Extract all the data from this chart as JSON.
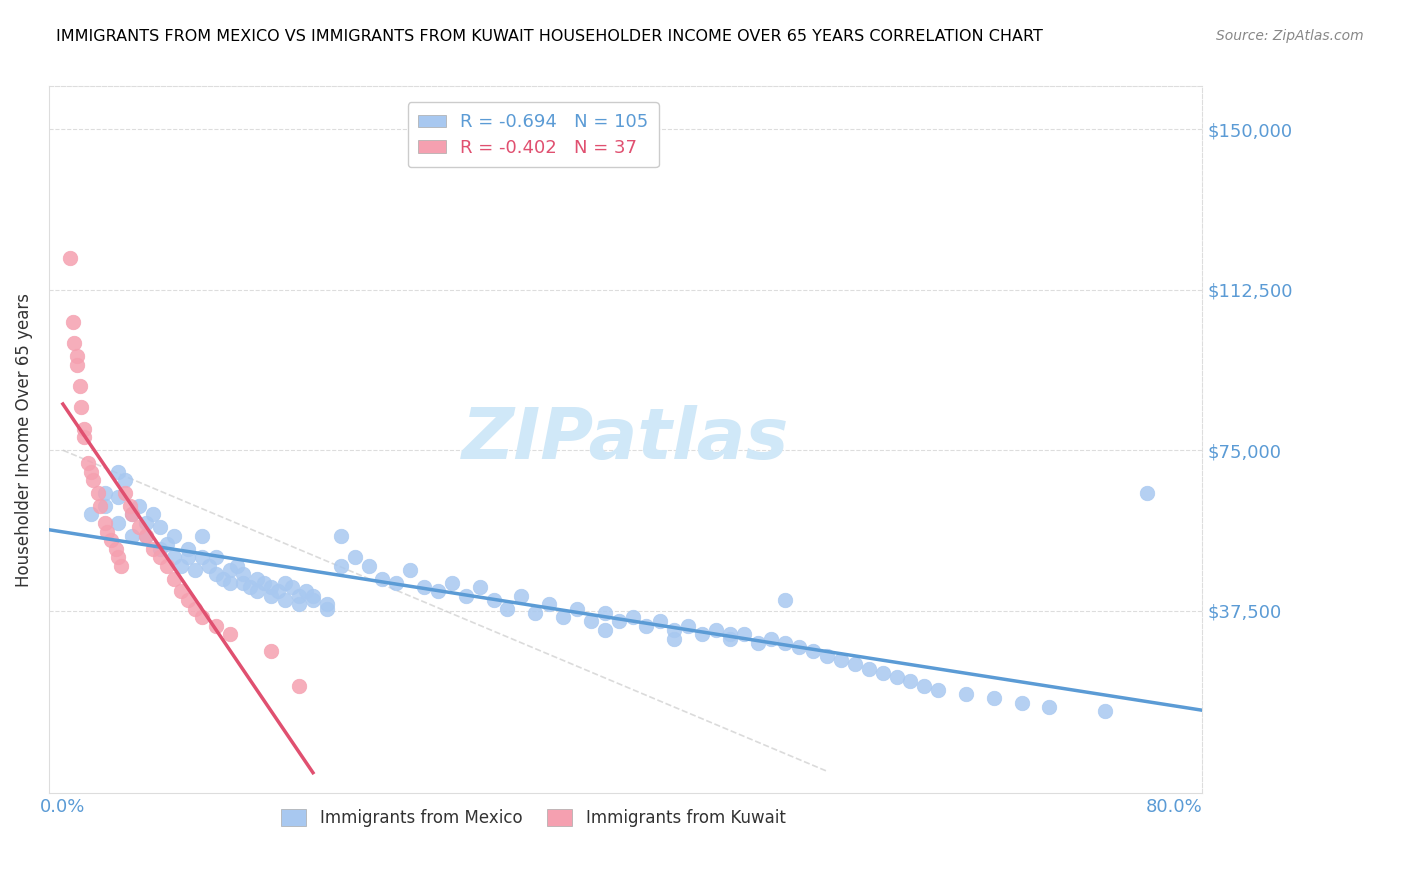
{
  "title": "IMMIGRANTS FROM MEXICO VS IMMIGRANTS FROM KUWAIT HOUSEHOLDER INCOME OVER 65 YEARS CORRELATION CHART",
  "source": "Source: ZipAtlas.com",
  "ylabel": "Householder Income Over 65 years",
  "ytick_labels": [
    "$37,500",
    "$75,000",
    "$112,500",
    "$150,000"
  ],
  "ytick_values": [
    37500,
    75000,
    112500,
    150000
  ],
  "ymax": 160000,
  "ymin": -5000,
  "xmax": 0.82,
  "xmin": -0.01,
  "mexico_R": -0.694,
  "mexico_N": 105,
  "kuwait_R": -0.402,
  "kuwait_N": 37,
  "mexico_color": "#a8c8f0",
  "kuwait_color": "#f5a0b0",
  "mexico_line_color": "#5b9bd5",
  "kuwait_line_color": "#e05070",
  "right_axis_color": "#5b9bd5",
  "background_color": "#ffffff",
  "title_color": "#000000",
  "mexico_scatter_x": [
    0.02,
    0.03,
    0.03,
    0.04,
    0.04,
    0.04,
    0.045,
    0.05,
    0.05,
    0.055,
    0.06,
    0.06,
    0.065,
    0.07,
    0.07,
    0.075,
    0.08,
    0.08,
    0.085,
    0.09,
    0.09,
    0.095,
    0.1,
    0.1,
    0.105,
    0.11,
    0.11,
    0.115,
    0.12,
    0.12,
    0.125,
    0.13,
    0.13,
    0.135,
    0.14,
    0.14,
    0.145,
    0.15,
    0.15,
    0.155,
    0.16,
    0.16,
    0.165,
    0.17,
    0.17,
    0.175,
    0.18,
    0.18,
    0.19,
    0.19,
    0.2,
    0.2,
    0.21,
    0.22,
    0.23,
    0.24,
    0.25,
    0.26,
    0.27,
    0.28,
    0.29,
    0.3,
    0.31,
    0.32,
    0.33,
    0.34,
    0.35,
    0.36,
    0.37,
    0.38,
    0.39,
    0.4,
    0.41,
    0.42,
    0.43,
    0.44,
    0.45,
    0.46,
    0.47,
    0.48,
    0.49,
    0.5,
    0.51,
    0.52,
    0.53,
    0.54,
    0.55,
    0.56,
    0.57,
    0.58,
    0.59,
    0.6,
    0.61,
    0.62,
    0.63,
    0.65,
    0.67,
    0.69,
    0.71,
    0.75,
    0.78,
    0.52,
    0.48,
    0.39,
    0.44
  ],
  "mexico_scatter_y": [
    60000,
    62000,
    65000,
    58000,
    70000,
    64000,
    68000,
    60000,
    55000,
    62000,
    58000,
    55000,
    60000,
    57000,
    52000,
    53000,
    55000,
    50000,
    48000,
    52000,
    50000,
    47000,
    50000,
    55000,
    48000,
    46000,
    50000,
    45000,
    47000,
    44000,
    48000,
    44000,
    46000,
    43000,
    45000,
    42000,
    44000,
    43000,
    41000,
    42000,
    44000,
    40000,
    43000,
    41000,
    39000,
    42000,
    41000,
    40000,
    38000,
    39000,
    55000,
    48000,
    50000,
    48000,
    45000,
    44000,
    47000,
    43000,
    42000,
    44000,
    41000,
    43000,
    40000,
    38000,
    41000,
    37000,
    39000,
    36000,
    38000,
    35000,
    37000,
    35000,
    36000,
    34000,
    35000,
    33000,
    34000,
    32000,
    33000,
    31000,
    32000,
    30000,
    31000,
    30000,
    29000,
    28000,
    27000,
    26000,
    25000,
    24000,
    23000,
    22000,
    21000,
    20000,
    19000,
    18000,
    17000,
    16000,
    15000,
    14000,
    65000,
    40000,
    32000,
    33000,
    31000
  ],
  "kuwait_scatter_x": [
    0.005,
    0.007,
    0.008,
    0.01,
    0.01,
    0.012,
    0.013,
    0.015,
    0.015,
    0.018,
    0.02,
    0.022,
    0.025,
    0.027,
    0.03,
    0.032,
    0.035,
    0.038,
    0.04,
    0.042,
    0.045,
    0.048,
    0.05,
    0.055,
    0.06,
    0.065,
    0.07,
    0.075,
    0.08,
    0.085,
    0.09,
    0.095,
    0.1,
    0.11,
    0.12,
    0.15,
    0.17
  ],
  "kuwait_scatter_y": [
    120000,
    105000,
    100000,
    97000,
    95000,
    90000,
    85000,
    80000,
    78000,
    72000,
    70000,
    68000,
    65000,
    62000,
    58000,
    56000,
    54000,
    52000,
    50000,
    48000,
    65000,
    62000,
    60000,
    57000,
    55000,
    52000,
    50000,
    48000,
    45000,
    42000,
    40000,
    38000,
    36000,
    34000,
    32000,
    28000,
    20000
  ]
}
